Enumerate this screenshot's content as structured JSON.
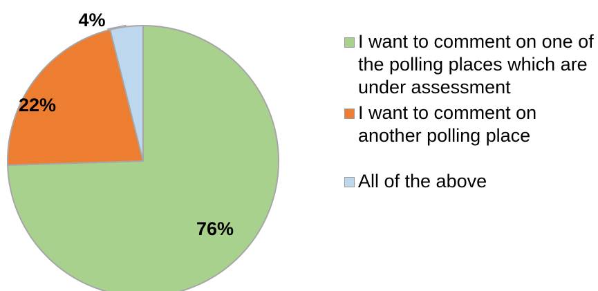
{
  "chart_data": {
    "type": "pie",
    "slices": [
      {
        "label": "I want to comment on one of the polling places which are under assessment",
        "value": 76,
        "value_label": "76%",
        "color": "#a9d18e"
      },
      {
        "label": "I want to comment on another polling place",
        "value": 22,
        "value_label": "22%",
        "color": "#ed7d31"
      },
      {
        "label": "All of the above",
        "value": 4,
        "value_label": "4%",
        "color": "#bdd7ee"
      }
    ],
    "start_angle_deg": 0,
    "direction": "clockwise",
    "slice_border_color": "#a6a6a6",
    "legend_position": "right"
  }
}
